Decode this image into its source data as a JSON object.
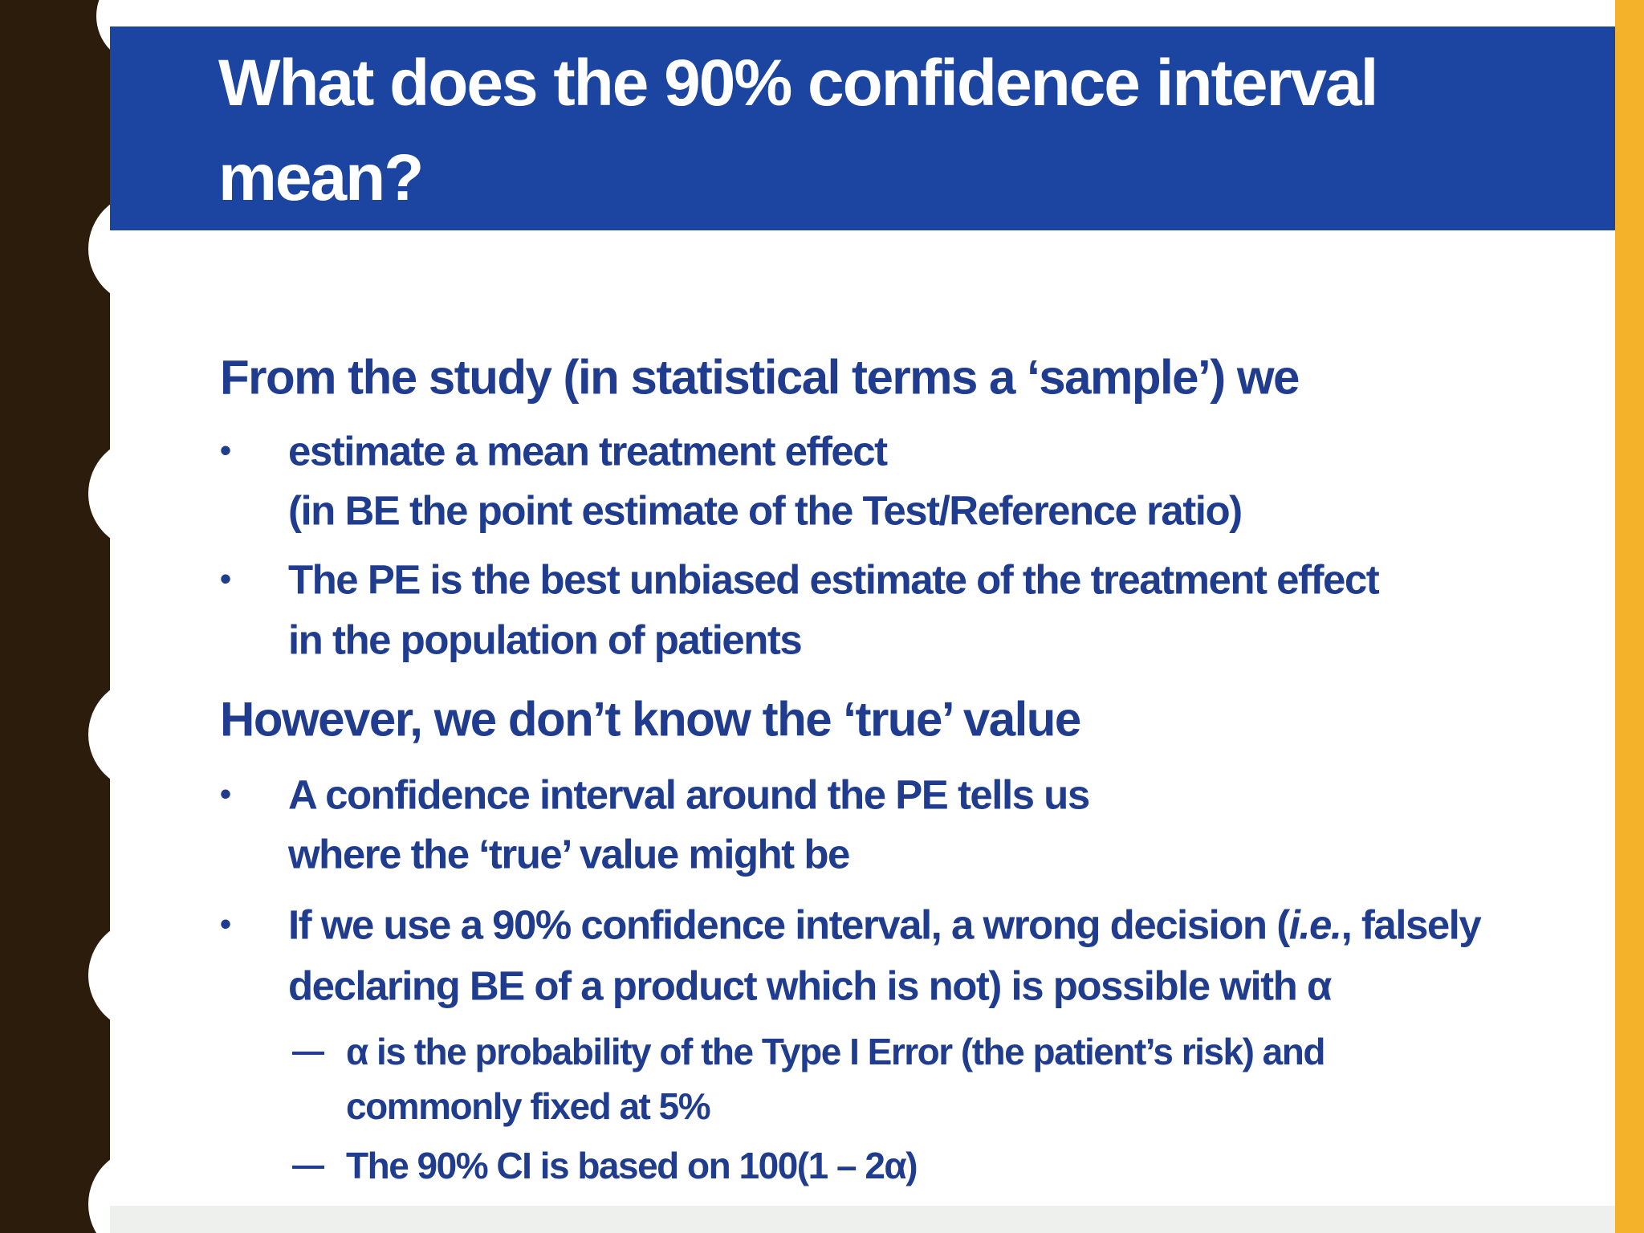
{
  "header": {
    "title_lines": [
      "What does the 90% confidence interval",
      "mean?"
    ]
  },
  "sections": [
    {
      "heading": "From the study (in statistical terms a ‘sample’) we",
      "bullets": [
        {
          "lines": [
            "estimate a mean treatment effect",
            "(in BE the point estimate of the Test/Reference ratio)"
          ]
        },
        {
          "lines": [
            "The PE is the best unbiased estimate of the treatment effect",
            "in the population of patients"
          ]
        }
      ]
    },
    {
      "heading": "However, we don’t know the ‘true’ value",
      "bullets": [
        {
          "lines": [
            "A confidence interval around the PE tells us",
            "where the ‘true’ value might be"
          ]
        },
        {
          "lines": [
            {
              "parts": [
                "If we use a 90% confidence interval, a wrong decision (",
                "i.e.",
                ", falsely"
              ]
            },
            "declaring BE of a product which is not) is possible with α"
          ],
          "sub_bullets": [
            {
              "lines": [
                "α is the probability of the Type I Error (the patient’s risk) and",
                "commonly fixed at 5%"
              ]
            },
            {
              "lines": [
                "The 90% CI is based on 100(1 – 2α)"
              ]
            }
          ]
        }
      ]
    }
  ]
}
